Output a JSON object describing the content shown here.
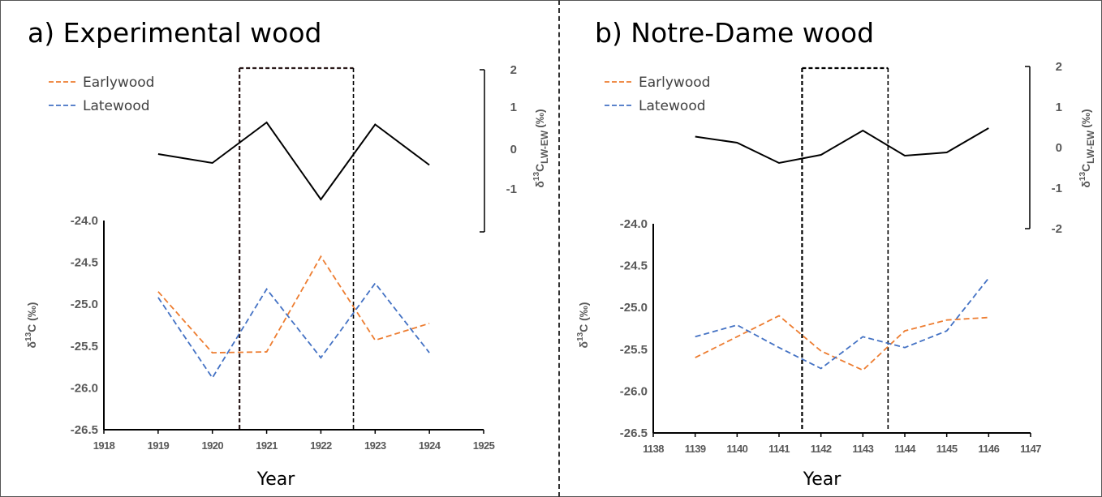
{
  "chart_data": [
    {
      "type": "line",
      "title": "a) Experimental wood",
      "xlabel": "Year",
      "x_ticks": [
        "1918",
        "1919",
        "1920",
        "1921",
        "1922",
        "1923",
        "1924",
        "1925"
      ],
      "xlim": [
        1918,
        1925
      ],
      "legend": {
        "placement": "top-left",
        "entries": [
          "Earlywood",
          "Latewood"
        ]
      },
      "primary_axis": {
        "ylabel": "δ13C (‰)",
        "ylabel_main": "δ",
        "ylabel_sup": "13",
        "ylabel_rest": "C (‰)",
        "ylim": [
          -26.5,
          -24.0
        ],
        "ticks": [
          "-24.0",
          "-24.5",
          "-25.0",
          "-25.5",
          "-26.0",
          "-26.5"
        ]
      },
      "secondary_axis": {
        "ylabel": "δ13C LW-EW (‰)",
        "ylabel_main": "δ",
        "ylabel_sup": "13",
        "ylabel_c": "C",
        "ylabel_sub": "LW-EW",
        "ylabel_tail": "(‰)",
        "ylim": [
          -2,
          2
        ],
        "ticks": [
          "2",
          "1",
          "0",
          "-1"
        ]
      },
      "series": [
        {
          "name": "Earlywood",
          "axis": "primary",
          "color": "#ED7D31",
          "style": "dashed",
          "x": [
            1919,
            1920,
            1921,
            1922,
            1923,
            1924
          ],
          "y": [
            -24.85,
            -25.58,
            -25.57,
            -24.43,
            -25.43,
            -25.23
          ]
        },
        {
          "name": "Latewood",
          "axis": "primary",
          "color": "#4472C4",
          "style": "dashed",
          "x": [
            1919,
            1920,
            1921,
            1922,
            1923,
            1924
          ],
          "y": [
            -24.92,
            -25.88,
            -24.82,
            -25.64,
            -24.75,
            -25.58
          ]
        },
        {
          "axis": "secondary",
          "color": "#000000",
          "style": "solid",
          "x": [
            1919,
            1920,
            1921,
            1922,
            1923,
            1924
          ],
          "y": [
            -0.08,
            -0.3,
            0.7,
            -1.2,
            0.65,
            -0.35
          ]
        }
      ],
      "highlight_box": {
        "x_range": [
          1920.5,
          1922.6
        ]
      }
    },
    {
      "type": "line",
      "title": "b) Notre-Dame wood",
      "xlabel": "Year",
      "x_ticks": [
        "1138",
        "1139",
        "1140",
        "1141",
        "1142",
        "1143",
        "1144",
        "1145",
        "1146",
        "1147"
      ],
      "xlim": [
        1138,
        1147
      ],
      "legend": {
        "placement": "top-left",
        "entries": [
          "Earlywood",
          "Latewood"
        ]
      },
      "primary_axis": {
        "ylabel": "δ13C (‰)",
        "ylabel_main": "δ",
        "ylabel_sup": "13",
        "ylabel_rest": "C (‰)",
        "ylim": [
          -26.5,
          -24.0
        ],
        "ticks": [
          "-24.0",
          "-24.5",
          "-25.0",
          "-25.5",
          "-26.0",
          "-26.5"
        ]
      },
      "secondary_axis": {
        "ylabel": "δ13C LW-EW (‰)",
        "ylabel_main": "δ",
        "ylabel_sup": "13",
        "ylabel_c": "C",
        "ylabel_sub": "LW-EW",
        "ylabel_tail": "(‰)",
        "ylim": [
          -2,
          2
        ],
        "ticks": [
          "2",
          "1",
          "0",
          "-1",
          "-2"
        ]
      },
      "series": [
        {
          "name": "Earlywood",
          "axis": "primary",
          "color": "#ED7D31",
          "style": "dashed",
          "x": [
            1139,
            1140,
            1141,
            1142,
            1143,
            1144,
            1145,
            1146
          ],
          "y": [
            -25.6,
            -25.35,
            -25.1,
            -25.52,
            -25.75,
            -25.28,
            -25.15,
            -25.12
          ]
        },
        {
          "name": "Latewood",
          "axis": "primary",
          "color": "#4472C4",
          "style": "dashed",
          "x": [
            1139,
            1140,
            1141,
            1142,
            1143,
            1144,
            1145,
            1146
          ],
          "y": [
            -25.35,
            -25.21,
            -25.48,
            -25.73,
            -25.35,
            -25.48,
            -25.28,
            -24.65
          ]
        },
        {
          "axis": "secondary",
          "color": "#000000",
          "style": "solid",
          "x": [
            1139,
            1140,
            1141,
            1142,
            1143,
            1144,
            1145,
            1146
          ],
          "y": [
            0.27,
            0.12,
            -0.38,
            -0.18,
            0.42,
            -0.2,
            -0.12,
            0.48
          ]
        }
      ],
      "highlight_box": {
        "x_range": [
          1141.55,
          1143.6
        ]
      }
    }
  ]
}
